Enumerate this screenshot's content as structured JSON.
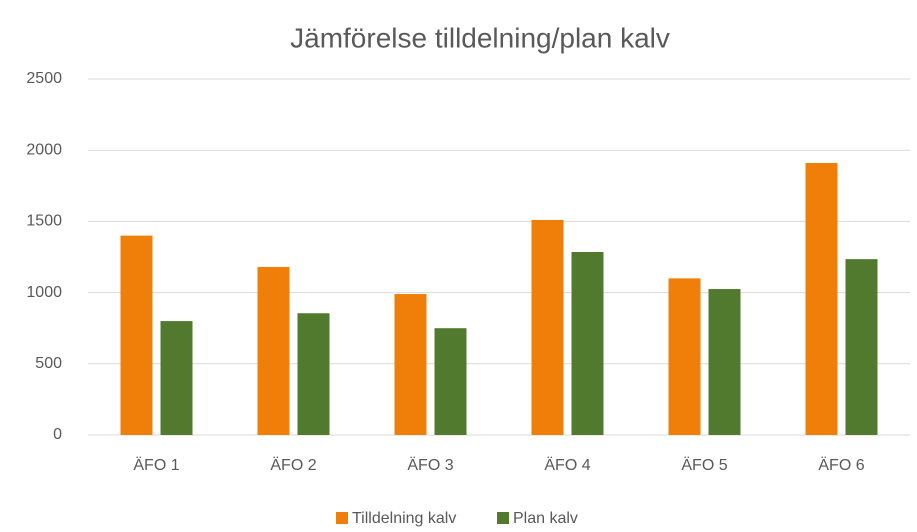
{
  "chart_data": {
    "type": "bar",
    "title": "Jämförelse tilldelning/plan kalv",
    "categories": [
      "ÄFO 1",
      "ÄFO 2",
      "ÄFO 3",
      "ÄFO 4",
      "ÄFO 5",
      "ÄFO 6"
    ],
    "series": [
      {
        "name": "Tilldelning kalv",
        "color": "#f07f09",
        "values": [
          1400,
          1180,
          990,
          1510,
          1100,
          1910
        ]
      },
      {
        "name": "Plan kalv",
        "color": "#527a2e",
        "values": [
          800,
          855,
          750,
          1285,
          1025,
          1235
        ]
      }
    ],
    "ylim": [
      0,
      2500
    ],
    "yticks": [
      0,
      500,
      1000,
      1500,
      2000,
      2500
    ],
    "grid": true,
    "legend": "bottom"
  }
}
